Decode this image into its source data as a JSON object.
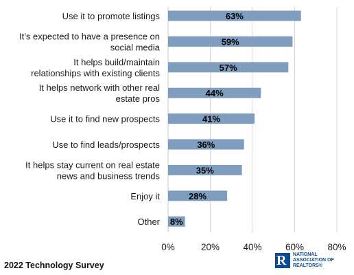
{
  "chart_data": {
    "type": "bar",
    "orientation": "horizontal",
    "categories": [
      [
        "Use it to promote listings"
      ],
      [
        "It’s expected to have a presence on",
        "social media"
      ],
      [
        "It helps build/maintain",
        "relationships with existing clients"
      ],
      [
        "It helps network with other real",
        "estate pros"
      ],
      [
        "Use it to find new prospects"
      ],
      [
        "Use to find leads/prospects"
      ],
      [
        "It helps stay current on real estate",
        "news and business trends"
      ],
      [
        "Enjoy it"
      ],
      [
        "Other"
      ]
    ],
    "values": [
      63,
      59,
      57,
      44,
      41,
      36,
      35,
      28,
      8
    ],
    "data_labels": [
      "63%",
      "59%",
      "57%",
      "44%",
      "41%",
      "36%",
      "35%",
      "28%",
      "8%"
    ],
    "x_ticks": [
      "0%",
      "20%",
      "40%",
      "60%",
      "80%"
    ],
    "xlim": [
      0,
      80
    ],
    "grid": "vertical",
    "bar_color": "#7f9dbf",
    "gridline_color": "#d9d9d9"
  },
  "footer": {
    "source": "2022 Technology Survey"
  },
  "logo": {
    "mark": "R",
    "lines": [
      "NATIONAL",
      "ASSOCIATION OF",
      "REALTORS®"
    ]
  }
}
